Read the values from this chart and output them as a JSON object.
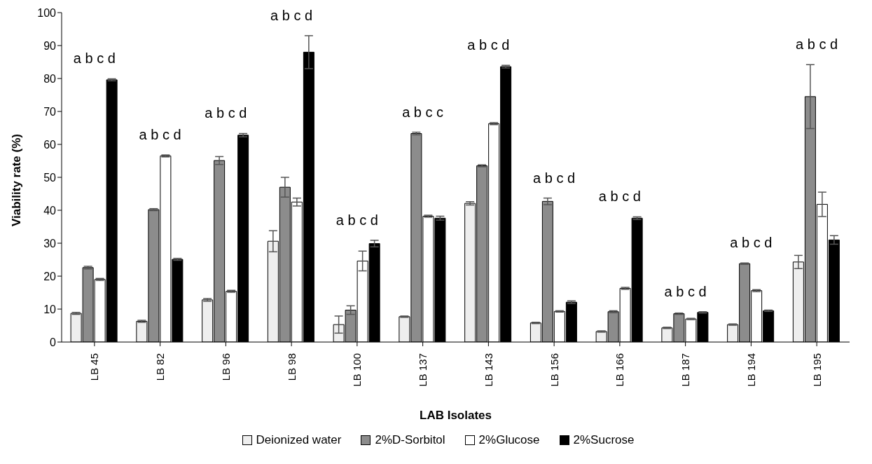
{
  "chart_data": {
    "type": "bar",
    "xlabel": "LAB Isolates",
    "ylabel": "Viability rate (%)",
    "categories": [
      "LB 45",
      "LB 82",
      "LB 96",
      "LB 98",
      "LB 100",
      "LB 137",
      "LB 143",
      "LB 156",
      "LB 166",
      "LB 187",
      "LB 194",
      "LB 195"
    ],
    "series": [
      {
        "name": "Deionized water",
        "color": "#eeeeee",
        "values": [
          8.7,
          6.3,
          12.8,
          30.6,
          5.3,
          7.7,
          42.1,
          5.8,
          3.2,
          4.3,
          5.3,
          24.3
        ],
        "errors": [
          0.3,
          0.3,
          0.4,
          3.2,
          2.6,
          0.2,
          0.5,
          0.2,
          0.2,
          0.2,
          0.2,
          2
        ]
      },
      {
        "name": "2%D-Sorbitol",
        "color": "#8c8c8c",
        "values": [
          22.6,
          40.2,
          55.1,
          47,
          9.7,
          63.3,
          53.5,
          42.7,
          9.2,
          8.6,
          23.8,
          74.5
        ],
        "errors": [
          0.4,
          0.3,
          1.2,
          3,
          1.3,
          0.4,
          0.3,
          1,
          0.3,
          0.2,
          0.2,
          9.7
        ]
      },
      {
        "name": "2%Glucose",
        "color": "#ffffff",
        "values": [
          19,
          56.5,
          15.4,
          42.5,
          24.6,
          38.2,
          66.3,
          9.3,
          16.3,
          7,
          15.6,
          41.8
        ],
        "errors": [
          0.3,
          0.3,
          0.3,
          1.2,
          3,
          0.3,
          0.3,
          0.2,
          0.3,
          0.2,
          0.3,
          3.7
        ]
      },
      {
        "name": "2%Sucrose",
        "color": "#000000",
        "values": [
          79.6,
          25.1,
          62.8,
          88,
          29.9,
          37.6,
          83.6,
          12.1,
          37.6,
          9,
          9.5,
          31
        ],
        "errors": [
          0.3,
          0.3,
          0.5,
          5,
          1,
          0.6,
          0.4,
          0.4,
          0.4,
          0.2,
          0.2,
          1.3
        ]
      }
    ],
    "ylim": [
      0,
      100
    ],
    "yticks": [
      0,
      10,
      20,
      30,
      40,
      50,
      60,
      70,
      80,
      90,
      100
    ],
    "grid": false,
    "legend": "bottom",
    "annotations": [
      "a b c d",
      "a b c d",
      "a b c d",
      "a b c d",
      "a b c d",
      "a b c c",
      "a b c d",
      "a b c d",
      "a b c d",
      "a b c d",
      "a b c d",
      "a b c d"
    ]
  }
}
